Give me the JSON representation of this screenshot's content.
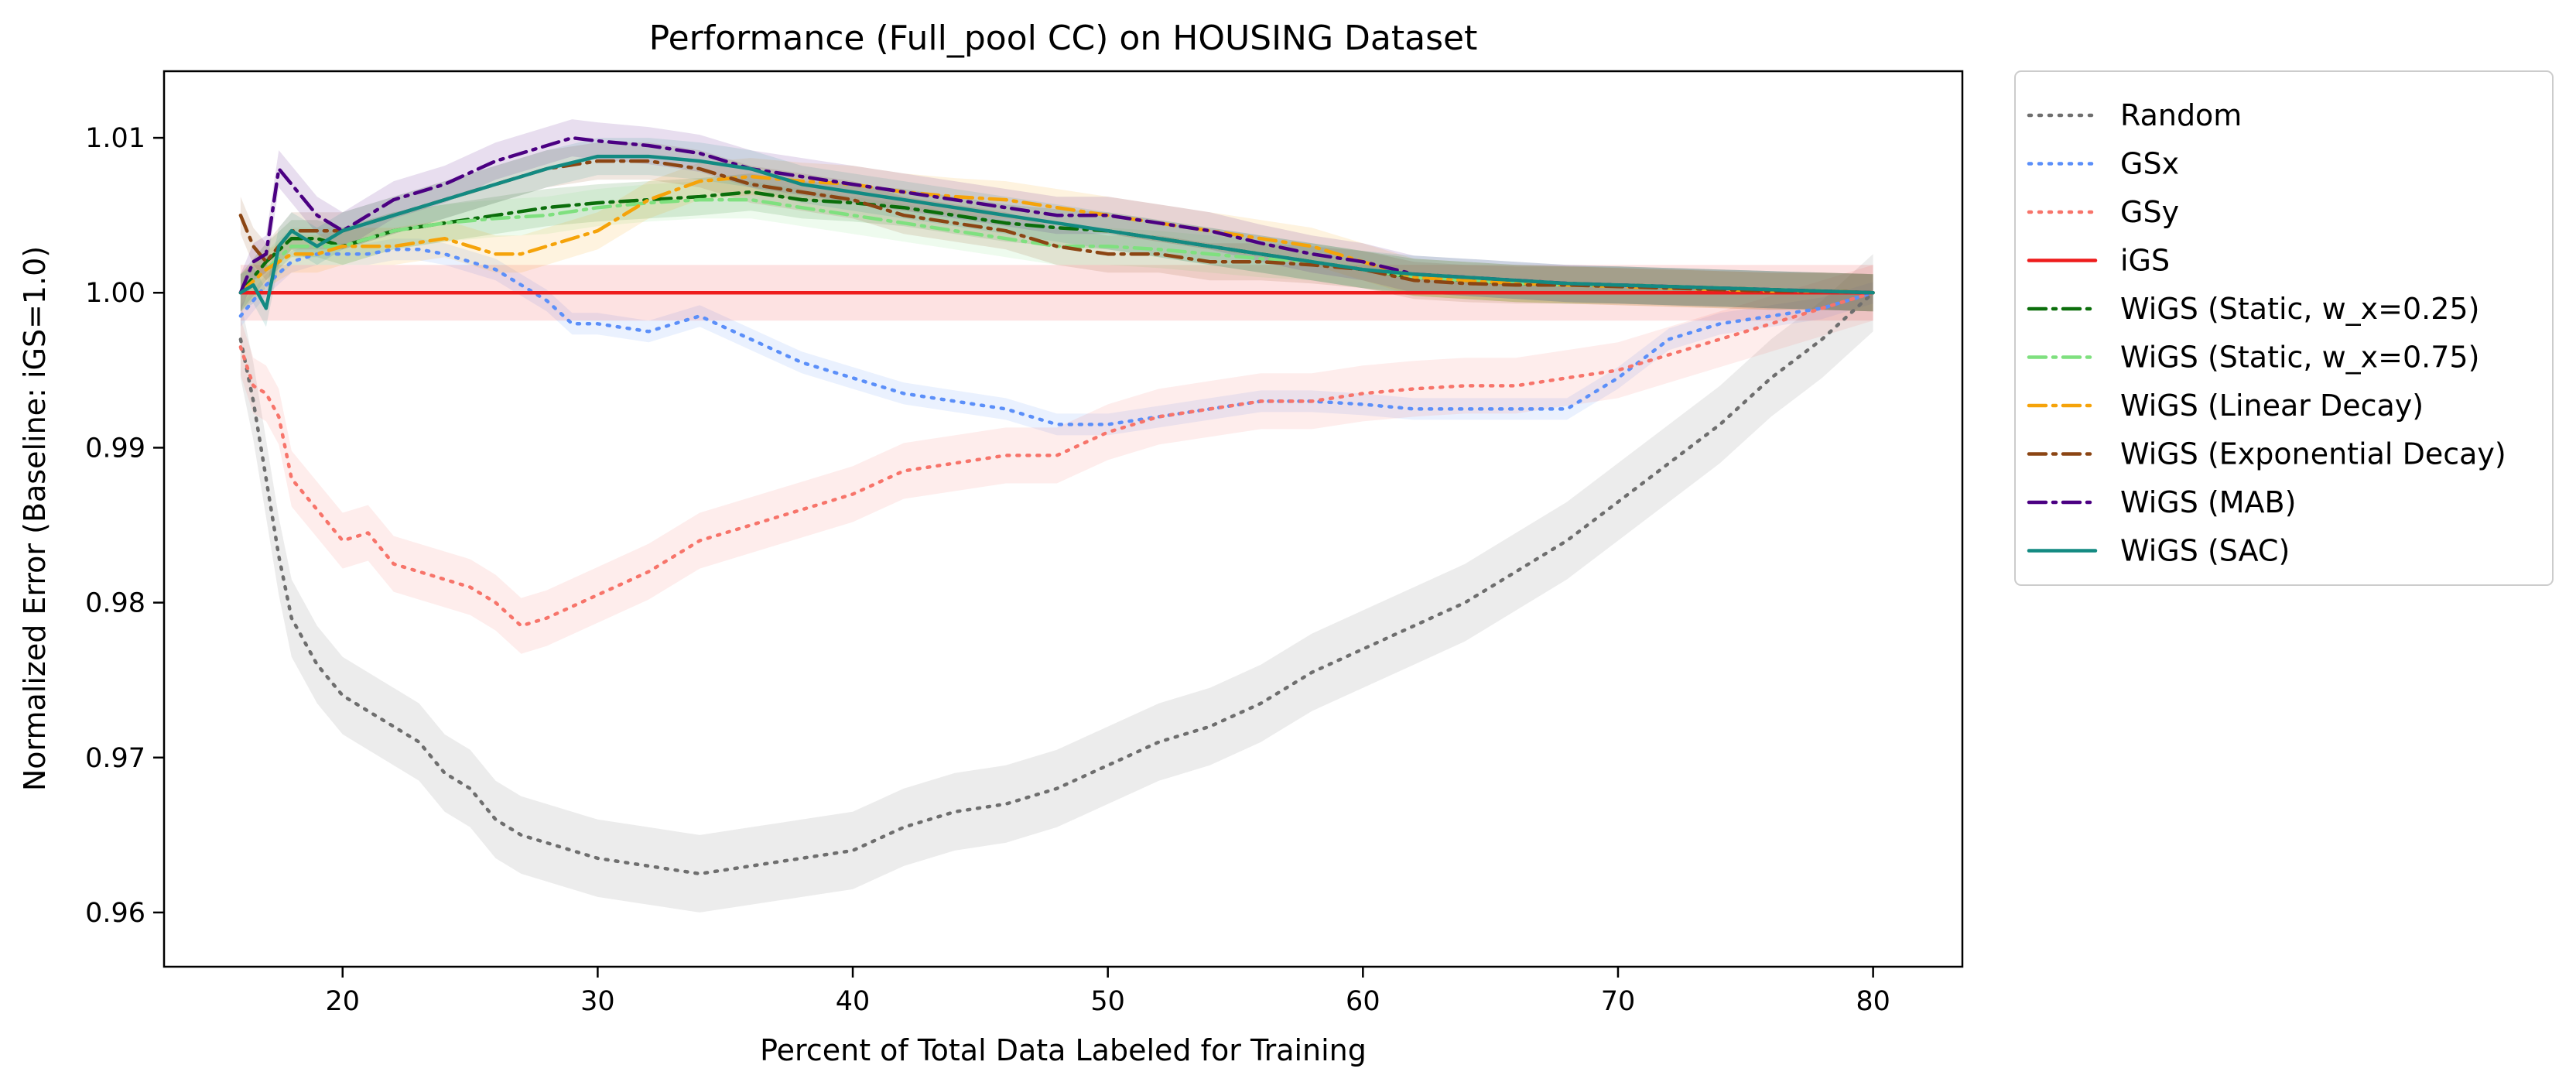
{
  "chart_data": {
    "type": "line",
    "title": "Performance (Full_pool CC) on HOUSING Dataset",
    "xlabel": "Percent of Total Data Labeled for Training",
    "ylabel": "Normalized Error (Baseline: iGS=1.0)",
    "xlim": [
      13,
      83.5
    ],
    "ylim": [
      0.9565,
      1.0143
    ],
    "xticks": [
      20,
      30,
      40,
      50,
      60,
      70,
      80
    ],
    "yticks": [
      0.96,
      0.97,
      0.98,
      0.99,
      1.0,
      1.01
    ],
    "ytick_labels": [
      "0.96",
      "0.97",
      "0.98",
      "0.99",
      "1.00",
      "1.01"
    ],
    "grid": false,
    "legend_position": "outside-right",
    "series": [
      {
        "name": "Random",
        "color": "#6e6e6e",
        "dash": "dot",
        "band": 0.0025,
        "x": [
          16,
          16.5,
          17,
          17.5,
          18,
          19,
          20,
          21,
          22,
          23,
          24,
          25,
          26,
          27,
          28,
          30,
          32,
          34,
          36,
          38,
          40,
          42,
          44,
          46,
          48,
          50,
          52,
          54,
          56,
          58,
          60,
          62,
          64,
          66,
          68,
          70,
          72,
          74,
          76,
          78,
          80
        ],
        "y": [
          0.997,
          0.993,
          0.988,
          0.983,
          0.979,
          0.976,
          0.974,
          0.973,
          0.972,
          0.971,
          0.969,
          0.968,
          0.966,
          0.965,
          0.9645,
          0.9635,
          0.963,
          0.9625,
          0.963,
          0.9635,
          0.964,
          0.9655,
          0.9665,
          0.967,
          0.968,
          0.9695,
          0.971,
          0.972,
          0.9735,
          0.9755,
          0.977,
          0.9785,
          0.98,
          0.982,
          0.984,
          0.9865,
          0.989,
          0.9915,
          0.9945,
          0.997,
          1.0
        ]
      },
      {
        "name": "GSx",
        "color": "#5b8ff9",
        "dash": "dot",
        "band": 0.0007,
        "x": [
          16,
          17,
          18,
          19,
          20,
          21,
          22,
          23,
          24,
          25,
          26,
          27,
          28,
          29,
          30,
          32,
          34,
          36,
          38,
          40,
          42,
          44,
          46,
          48,
          50,
          52,
          54,
          56,
          58,
          60,
          62,
          64,
          66,
          68,
          70,
          72,
          74,
          76,
          78,
          80
        ],
        "y": [
          0.9985,
          1.0005,
          1.002,
          1.0025,
          1.0025,
          1.0025,
          1.0028,
          1.0028,
          1.0025,
          1.002,
          1.0015,
          1.0005,
          0.9995,
          0.998,
          0.998,
          0.9975,
          0.9985,
          0.997,
          0.9955,
          0.9945,
          0.9935,
          0.993,
          0.9925,
          0.9915,
          0.9915,
          0.992,
          0.9925,
          0.993,
          0.993,
          0.9928,
          0.9925,
          0.9925,
          0.9925,
          0.9925,
          0.9945,
          0.997,
          0.998,
          0.9985,
          0.999,
          1.0
        ]
      },
      {
        "name": "GSy",
        "color": "#f7746a",
        "dash": "dot",
        "band": 0.0018,
        "x": [
          16,
          16.5,
          17,
          17.5,
          18,
          19,
          20,
          21,
          22,
          23,
          24,
          25,
          26,
          27,
          28,
          30,
          32,
          34,
          36,
          38,
          40,
          42,
          44,
          46,
          48,
          50,
          52,
          54,
          56,
          58,
          60,
          62,
          64,
          66,
          68,
          70,
          72,
          74,
          76,
          78,
          80
        ],
        "y": [
          0.9965,
          0.994,
          0.9935,
          0.992,
          0.988,
          0.986,
          0.984,
          0.9845,
          0.9825,
          0.982,
          0.9815,
          0.981,
          0.98,
          0.9785,
          0.979,
          0.9805,
          0.982,
          0.984,
          0.985,
          0.986,
          0.987,
          0.9885,
          0.989,
          0.9895,
          0.9895,
          0.991,
          0.992,
          0.9925,
          0.993,
          0.993,
          0.9935,
          0.9938,
          0.994,
          0.994,
          0.9945,
          0.995,
          0.996,
          0.997,
          0.998,
          0.999,
          1.0
        ]
      },
      {
        "name": "iGS",
        "color": "#ee1c1c",
        "dash": "solid",
        "band": 0.0018,
        "x": [
          16,
          80
        ],
        "y": [
          1.0,
          1.0
        ]
      },
      {
        "name": "WiGS (Static, w_x=0.25)",
        "color": "#0b6e0b",
        "dash": "dashdot",
        "band": 0.0012,
        "x": [
          16,
          17,
          18,
          19,
          20,
          22,
          24,
          26,
          28,
          30,
          32,
          34,
          36,
          38,
          40,
          42,
          44,
          46,
          48,
          50,
          52,
          54,
          56,
          58,
          60,
          62,
          64,
          66,
          68,
          70,
          72,
          74,
          76,
          78,
          80
        ],
        "y": [
          1.0,
          1.002,
          1.0035,
          1.0035,
          1.003,
          1.004,
          1.0045,
          1.005,
          1.0055,
          1.0058,
          1.006,
          1.0062,
          1.0065,
          1.006,
          1.0058,
          1.0055,
          1.005,
          1.0045,
          1.0042,
          1.004,
          1.0035,
          1.003,
          1.0025,
          1.002,
          1.0015,
          1.001,
          1.0008,
          1.0006,
          1.0005,
          1.0005,
          1.0004,
          1.0003,
          1.0002,
          1.0001,
          1.0
        ]
      },
      {
        "name": "WiGS (Static, w_x=0.75)",
        "color": "#7fe07f",
        "dash": "dashdot",
        "band": 0.0012,
        "x": [
          16,
          17,
          18,
          19,
          20,
          22,
          24,
          26,
          28,
          30,
          32,
          34,
          36,
          38,
          40,
          42,
          44,
          46,
          48,
          50,
          52,
          54,
          56,
          58,
          60,
          62,
          64,
          66,
          68,
          70,
          72,
          74,
          76,
          78,
          80
        ],
        "y": [
          1.0,
          1.0015,
          1.003,
          1.003,
          1.003,
          1.004,
          1.0045,
          1.0048,
          1.005,
          1.0055,
          1.0058,
          1.006,
          1.006,
          1.0055,
          1.005,
          1.0045,
          1.004,
          1.0035,
          1.003,
          1.003,
          1.0028,
          1.0025,
          1.0022,
          1.002,
          1.0015,
          1.001,
          1.0008,
          1.0006,
          1.0005,
          1.0005,
          1.0004,
          1.0003,
          1.0002,
          1.0001,
          1.0
        ]
      },
      {
        "name": "WiGS (Linear Decay)",
        "color": "#f5a30a",
        "dash": "dashdot",
        "band": 0.0012,
        "x": [
          16,
          17,
          18,
          19,
          20,
          22,
          24,
          26,
          27,
          28,
          30,
          32,
          34,
          36,
          38,
          40,
          42,
          44,
          46,
          48,
          50,
          52,
          54,
          56,
          58,
          60,
          62,
          64,
          66,
          68,
          70,
          72,
          74,
          76,
          78,
          80
        ],
        "y": [
          1.0,
          1.0015,
          1.0025,
          1.0025,
          1.003,
          1.003,
          1.0035,
          1.0025,
          1.0025,
          1.003,
          1.004,
          1.006,
          1.0072,
          1.0075,
          1.0072,
          1.007,
          1.0065,
          1.0062,
          1.006,
          1.0055,
          1.005,
          1.0045,
          1.004,
          1.0035,
          1.003,
          1.002,
          1.001,
          1.0008,
          1.0006,
          1.0005,
          1.0004,
          1.0003,
          1.0002,
          1.0001,
          1.0001,
          1.0
        ]
      },
      {
        "name": "WiGS (Exponential Decay)",
        "color": "#8b4513",
        "dash": "dashdot",
        "band": 0.0012,
        "x": [
          16,
          16.5,
          17,
          18,
          19,
          20,
          22,
          24,
          26,
          28,
          30,
          32,
          34,
          36,
          38,
          40,
          42,
          44,
          46,
          48,
          50,
          52,
          54,
          56,
          58,
          60,
          62,
          64,
          66,
          68,
          70,
          72,
          74,
          76,
          78,
          80
        ],
        "y": [
          1.005,
          1.003,
          1.002,
          1.004,
          1.004,
          1.004,
          1.005,
          1.006,
          1.007,
          1.008,
          1.0085,
          1.0085,
          1.008,
          1.007,
          1.0065,
          1.006,
          1.005,
          1.0045,
          1.004,
          1.003,
          1.0025,
          1.0025,
          1.002,
          1.002,
          1.0018,
          1.0015,
          1.0008,
          1.0006,
          1.0005,
          1.0005,
          1.0004,
          1.0003,
          1.0002,
          1.0001,
          1.0001,
          1.0
        ]
      },
      {
        "name": "WiGS (MAB)",
        "color": "#4b0082",
        "dash": "dashdot",
        "band": 0.0012,
        "x": [
          16,
          16.5,
          17,
          17.5,
          18,
          19,
          20,
          21,
          22,
          24,
          26,
          28,
          29,
          30,
          32,
          34,
          36,
          38,
          40,
          42,
          44,
          46,
          48,
          50,
          52,
          54,
          56,
          58,
          60,
          62,
          64,
          66,
          68,
          70,
          72,
          74,
          76,
          78,
          80
        ],
        "y": [
          1.0,
          1.002,
          1.0025,
          1.008,
          1.007,
          1.005,
          1.004,
          1.005,
          1.006,
          1.007,
          1.0085,
          1.0095,
          1.01,
          1.0098,
          1.0095,
          1.009,
          1.008,
          1.0075,
          1.007,
          1.0065,
          1.006,
          1.0055,
          1.005,
          1.005,
          1.0045,
          1.004,
          1.0032,
          1.0025,
          1.002,
          1.0012,
          1.001,
          1.0008,
          1.0006,
          1.0005,
          1.0004,
          1.0003,
          1.0002,
          1.0001,
          1.0
        ]
      },
      {
        "name": "WiGS (SAC)",
        "color": "#138a82",
        "dash": "solid",
        "band": 0.0012,
        "x": [
          16,
          16.5,
          17,
          17.5,
          18,
          19,
          20,
          22,
          24,
          26,
          28,
          30,
          32,
          34,
          36,
          38,
          40,
          42,
          44,
          46,
          48,
          50,
          52,
          54,
          56,
          58,
          60,
          62,
          64,
          66,
          68,
          70,
          72,
          74,
          76,
          78,
          80
        ],
        "y": [
          1.0,
          1.0005,
          0.999,
          1.003,
          1.004,
          1.003,
          1.004,
          1.005,
          1.006,
          1.007,
          1.008,
          1.0088,
          1.0088,
          1.0085,
          1.008,
          1.007,
          1.0065,
          1.006,
          1.0055,
          1.005,
          1.0045,
          1.004,
          1.0035,
          1.003,
          1.0025,
          1.002,
          1.0015,
          1.0012,
          1.001,
          1.0008,
          1.0006,
          1.0005,
          1.0004,
          1.0003,
          1.0002,
          1.0001,
          1.0
        ]
      }
    ]
  }
}
